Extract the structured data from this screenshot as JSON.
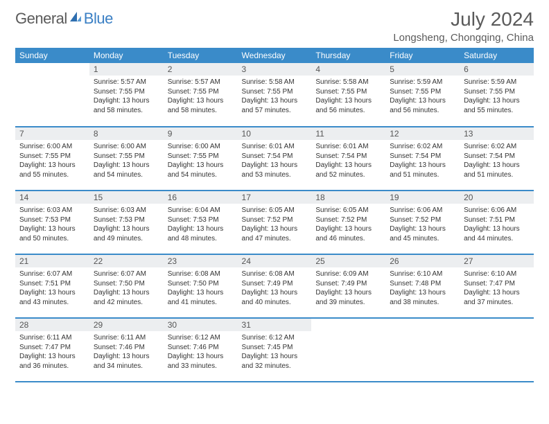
{
  "brand": {
    "part1": "General",
    "part2": "Blue"
  },
  "title": "July 2024",
  "location": "Longsheng, Chongqing, China",
  "colors": {
    "accent": "#3a8bc9",
    "header_bg": "#3a8bc9",
    "header_text": "#ffffff",
    "daynum_bg": "#eceef0",
    "text": "#333333",
    "title_text": "#5a5a5a"
  },
  "weekdays": [
    "Sunday",
    "Monday",
    "Tuesday",
    "Wednesday",
    "Thursday",
    "Friday",
    "Saturday"
  ],
  "weeks": [
    [
      {
        "n": "",
        "sun": "",
        "set": "",
        "day": ""
      },
      {
        "n": "1",
        "sun": "Sunrise: 5:57 AM",
        "set": "Sunset: 7:55 PM",
        "day": "Daylight: 13 hours and 58 minutes."
      },
      {
        "n": "2",
        "sun": "Sunrise: 5:57 AM",
        "set": "Sunset: 7:55 PM",
        "day": "Daylight: 13 hours and 58 minutes."
      },
      {
        "n": "3",
        "sun": "Sunrise: 5:58 AM",
        "set": "Sunset: 7:55 PM",
        "day": "Daylight: 13 hours and 57 minutes."
      },
      {
        "n": "4",
        "sun": "Sunrise: 5:58 AM",
        "set": "Sunset: 7:55 PM",
        "day": "Daylight: 13 hours and 56 minutes."
      },
      {
        "n": "5",
        "sun": "Sunrise: 5:59 AM",
        "set": "Sunset: 7:55 PM",
        "day": "Daylight: 13 hours and 56 minutes."
      },
      {
        "n": "6",
        "sun": "Sunrise: 5:59 AM",
        "set": "Sunset: 7:55 PM",
        "day": "Daylight: 13 hours and 55 minutes."
      }
    ],
    [
      {
        "n": "7",
        "sun": "Sunrise: 6:00 AM",
        "set": "Sunset: 7:55 PM",
        "day": "Daylight: 13 hours and 55 minutes."
      },
      {
        "n": "8",
        "sun": "Sunrise: 6:00 AM",
        "set": "Sunset: 7:55 PM",
        "day": "Daylight: 13 hours and 54 minutes."
      },
      {
        "n": "9",
        "sun": "Sunrise: 6:00 AM",
        "set": "Sunset: 7:55 PM",
        "day": "Daylight: 13 hours and 54 minutes."
      },
      {
        "n": "10",
        "sun": "Sunrise: 6:01 AM",
        "set": "Sunset: 7:54 PM",
        "day": "Daylight: 13 hours and 53 minutes."
      },
      {
        "n": "11",
        "sun": "Sunrise: 6:01 AM",
        "set": "Sunset: 7:54 PM",
        "day": "Daylight: 13 hours and 52 minutes."
      },
      {
        "n": "12",
        "sun": "Sunrise: 6:02 AM",
        "set": "Sunset: 7:54 PM",
        "day": "Daylight: 13 hours and 51 minutes."
      },
      {
        "n": "13",
        "sun": "Sunrise: 6:02 AM",
        "set": "Sunset: 7:54 PM",
        "day": "Daylight: 13 hours and 51 minutes."
      }
    ],
    [
      {
        "n": "14",
        "sun": "Sunrise: 6:03 AM",
        "set": "Sunset: 7:53 PM",
        "day": "Daylight: 13 hours and 50 minutes."
      },
      {
        "n": "15",
        "sun": "Sunrise: 6:03 AM",
        "set": "Sunset: 7:53 PM",
        "day": "Daylight: 13 hours and 49 minutes."
      },
      {
        "n": "16",
        "sun": "Sunrise: 6:04 AM",
        "set": "Sunset: 7:53 PM",
        "day": "Daylight: 13 hours and 48 minutes."
      },
      {
        "n": "17",
        "sun": "Sunrise: 6:05 AM",
        "set": "Sunset: 7:52 PM",
        "day": "Daylight: 13 hours and 47 minutes."
      },
      {
        "n": "18",
        "sun": "Sunrise: 6:05 AM",
        "set": "Sunset: 7:52 PM",
        "day": "Daylight: 13 hours and 46 minutes."
      },
      {
        "n": "19",
        "sun": "Sunrise: 6:06 AM",
        "set": "Sunset: 7:52 PM",
        "day": "Daylight: 13 hours and 45 minutes."
      },
      {
        "n": "20",
        "sun": "Sunrise: 6:06 AM",
        "set": "Sunset: 7:51 PM",
        "day": "Daylight: 13 hours and 44 minutes."
      }
    ],
    [
      {
        "n": "21",
        "sun": "Sunrise: 6:07 AM",
        "set": "Sunset: 7:51 PM",
        "day": "Daylight: 13 hours and 43 minutes."
      },
      {
        "n": "22",
        "sun": "Sunrise: 6:07 AM",
        "set": "Sunset: 7:50 PM",
        "day": "Daylight: 13 hours and 42 minutes."
      },
      {
        "n": "23",
        "sun": "Sunrise: 6:08 AM",
        "set": "Sunset: 7:50 PM",
        "day": "Daylight: 13 hours and 41 minutes."
      },
      {
        "n": "24",
        "sun": "Sunrise: 6:08 AM",
        "set": "Sunset: 7:49 PM",
        "day": "Daylight: 13 hours and 40 minutes."
      },
      {
        "n": "25",
        "sun": "Sunrise: 6:09 AM",
        "set": "Sunset: 7:49 PM",
        "day": "Daylight: 13 hours and 39 minutes."
      },
      {
        "n": "26",
        "sun": "Sunrise: 6:10 AM",
        "set": "Sunset: 7:48 PM",
        "day": "Daylight: 13 hours and 38 minutes."
      },
      {
        "n": "27",
        "sun": "Sunrise: 6:10 AM",
        "set": "Sunset: 7:47 PM",
        "day": "Daylight: 13 hours and 37 minutes."
      }
    ],
    [
      {
        "n": "28",
        "sun": "Sunrise: 6:11 AM",
        "set": "Sunset: 7:47 PM",
        "day": "Daylight: 13 hours and 36 minutes."
      },
      {
        "n": "29",
        "sun": "Sunrise: 6:11 AM",
        "set": "Sunset: 7:46 PM",
        "day": "Daylight: 13 hours and 34 minutes."
      },
      {
        "n": "30",
        "sun": "Sunrise: 6:12 AM",
        "set": "Sunset: 7:46 PM",
        "day": "Daylight: 13 hours and 33 minutes."
      },
      {
        "n": "31",
        "sun": "Sunrise: 6:12 AM",
        "set": "Sunset: 7:45 PM",
        "day": "Daylight: 13 hours and 32 minutes."
      },
      {
        "n": "",
        "sun": "",
        "set": "",
        "day": ""
      },
      {
        "n": "",
        "sun": "",
        "set": "",
        "day": ""
      },
      {
        "n": "",
        "sun": "",
        "set": "",
        "day": ""
      }
    ]
  ]
}
